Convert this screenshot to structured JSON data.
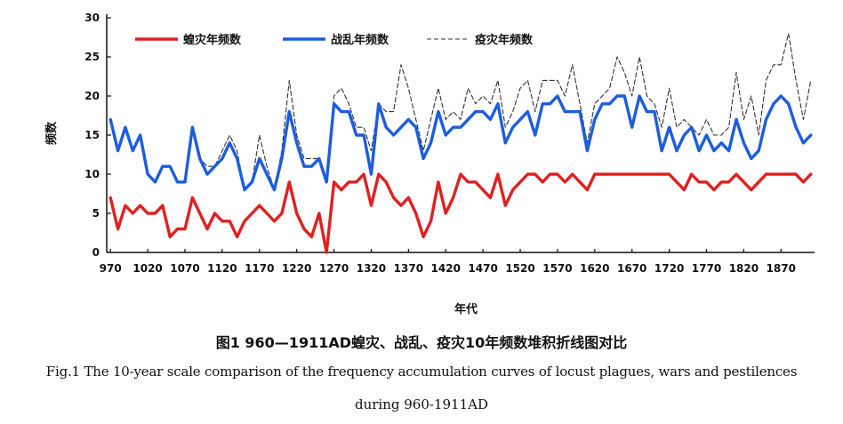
{
  "chart_data": {
    "type": "line",
    "xlabel": "年代",
    "ylabel": "频数",
    "ylim": [
      0,
      30
    ],
    "yticks": [
      0,
      5,
      10,
      15,
      20,
      25,
      30
    ],
    "xlim": [
      965,
      1915
    ],
    "xticks": [
      970,
      1020,
      1070,
      1120,
      1170,
      1220,
      1270,
      1320,
      1370,
      1420,
      1470,
      1520,
      1570,
      1620,
      1670,
      1720,
      1770,
      1820,
      1870
    ],
    "legend_position": "top",
    "grid": false,
    "x": [
      970,
      980,
      990,
      1000,
      1010,
      1020,
      1030,
      1040,
      1050,
      1060,
      1070,
      1080,
      1090,
      1100,
      1110,
      1120,
      1130,
      1140,
      1150,
      1160,
      1170,
      1180,
      1190,
      1200,
      1210,
      1220,
      1230,
      1240,
      1250,
      1260,
      1270,
      1280,
      1290,
      1300,
      1310,
      1320,
      1330,
      1340,
      1350,
      1360,
      1370,
      1380,
      1390,
      1400,
      1410,
      1420,
      1430,
      1440,
      1450,
      1460,
      1470,
      1480,
      1490,
      1500,
      1510,
      1520,
      1530,
      1540,
      1550,
      1560,
      1570,
      1580,
      1590,
      1600,
      1610,
      1620,
      1630,
      1640,
      1650,
      1660,
      1670,
      1680,
      1690,
      1700,
      1710,
      1720,
      1730,
      1740,
      1750,
      1760,
      1770,
      1780,
      1790,
      1800,
      1810,
      1820,
      1830,
      1840,
      1850,
      1860,
      1870,
      1880,
      1890,
      1900,
      1910
    ],
    "series": [
      {
        "name": "蝗灾年频数",
        "color": "#e02020",
        "style": "solid",
        "values": [
          7,
          3,
          6,
          5,
          6,
          5,
          5,
          6,
          2,
          3,
          3,
          7,
          5,
          3,
          5,
          4,
          4,
          2,
          4,
          5,
          6,
          5,
          4,
          5,
          9,
          5,
          3,
          2,
          5,
          0,
          9,
          8,
          9,
          9,
          10,
          6,
          10,
          9,
          7,
          6,
          7,
          5,
          2,
          4,
          9,
          5,
          7,
          10,
          9,
          9,
          8,
          7,
          10,
          6,
          8,
          9,
          10,
          10,
          9,
          10,
          10,
          9,
          10,
          9,
          8,
          10,
          10,
          10,
          10,
          10,
          10,
          10,
          10,
          10,
          10,
          10,
          9,
          8,
          10,
          9,
          9,
          8,
          9,
          9,
          10,
          9,
          8,
          9,
          10,
          10,
          10,
          10,
          10,
          9,
          10
        ]
      },
      {
        "name": "战乱年频数",
        "color": "#1c5de0",
        "style": "solid",
        "values": [
          17,
          13,
          16,
          13,
          15,
          10,
          9,
          11,
          11,
          9,
          9,
          16,
          12,
          10,
          11,
          12,
          14,
          12,
          8,
          9,
          12,
          10,
          8,
          12,
          18,
          14,
          11,
          11,
          12,
          9,
          19,
          18,
          18,
          15,
          15,
          10,
          19,
          16,
          15,
          16,
          17,
          16,
          12,
          14,
          18,
          15,
          16,
          16,
          17,
          18,
          18,
          17,
          19,
          14,
          16,
          17,
          18,
          15,
          19,
          19,
          20,
          18,
          18,
          18,
          13,
          17,
          19,
          19,
          20,
          20,
          16,
          20,
          18,
          18,
          13,
          16,
          13,
          15,
          16,
          13,
          15,
          13,
          14,
          13,
          17,
          14,
          12,
          13,
          17,
          19,
          20,
          19,
          16,
          14,
          15
        ]
      },
      {
        "name": "疫灾年频数",
        "color": "#333333",
        "style": "dashed",
        "values": [
          17,
          13,
          16,
          13,
          15,
          10,
          9,
          11,
          11,
          9,
          9,
          16,
          12,
          11,
          11,
          13,
          15,
          13,
          8,
          9,
          15,
          11,
          8,
          13,
          22,
          15,
          12,
          12,
          12,
          9,
          20,
          21,
          19,
          16,
          16,
          13,
          19,
          18,
          18,
          24,
          21,
          17,
          13,
          17,
          21,
          17,
          18,
          17,
          21,
          19,
          20,
          19,
          22,
          16,
          18,
          21,
          22,
          18,
          22,
          22,
          22,
          20,
          24,
          19,
          14,
          19,
          20,
          21,
          25,
          23,
          20,
          25,
          20,
          19,
          16,
          21,
          16,
          17,
          16,
          15,
          17,
          15,
          15,
          16,
          23,
          17,
          20,
          15,
          22,
          24,
          24,
          28,
          22,
          17,
          22
        ]
      }
    ]
  },
  "captions": {
    "cn": "图1 960—1911AD蝗灾、战乱、疫灾10年频数堆积折线图对比",
    "en_line1": "Fig.1 The 10-year scale comparison of the frequency accumulation curves of locust plagues, wars and pestilences",
    "en_line2": "during 960-1911AD"
  }
}
